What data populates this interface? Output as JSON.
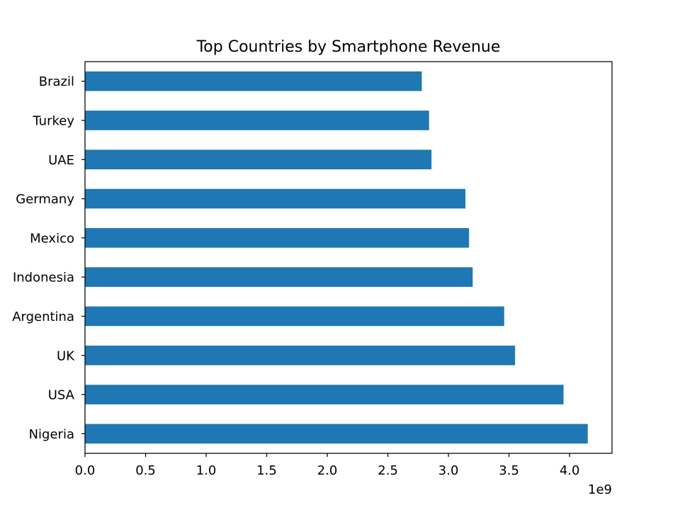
{
  "chart_data": {
    "type": "bar",
    "orientation": "horizontal",
    "title": "Top Countries by Smartphone Revenue",
    "xlabel": "",
    "ylabel": "",
    "categories": [
      "Nigeria",
      "USA",
      "UK",
      "Argentina",
      "Indonesia",
      "Mexico",
      "Germany",
      "UAE",
      "Turkey",
      "Brazil"
    ],
    "values": [
      4150000000.0,
      3950000000.0,
      3550000000.0,
      3460000000.0,
      3200000000.0,
      3170000000.0,
      3140000000.0,
      2860000000.0,
      2840000000.0,
      2780000000.0
    ],
    "xlim": [
      0,
      4350000000.0
    ],
    "x_ticks": [
      "0.0",
      "0.5",
      "1.0",
      "1.5",
      "2.0",
      "2.5",
      "3.0",
      "3.5",
      "4.0"
    ],
    "x_offset_label": "1e9",
    "bar_color": "#1f77b4",
    "grid": false,
    "legend": "none"
  }
}
